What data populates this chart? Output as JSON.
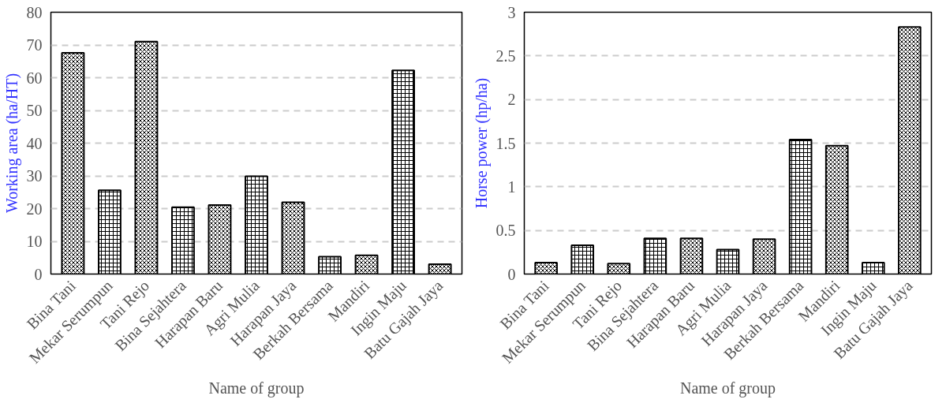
{
  "chart_data": [
    {
      "type": "bar",
      "xlabel": "Name of group",
      "ylabel": "Working area (ha/HT)",
      "categories": [
        "Bina Tani",
        "Mekar Serumpun",
        "Tani Rejo",
        "Bina Sejahtera",
        "Harapan Baru",
        "Agri Mulia",
        "Harapan Jaya",
        "Berkah Bersama",
        "Mandiri",
        "Ingin Maju",
        "Batu Gajah Jaya"
      ],
      "series": [
        {
          "color": "#000000",
          "values": [
            67.6,
            25.6,
            71,
            20.4,
            21.1,
            29.9,
            21.9,
            5.3,
            5.7,
            62.2,
            3.0
          ]
        }
      ],
      "ylim": [
        0,
        80
      ],
      "yticks": [
        0,
        10,
        20,
        30,
        40,
        50,
        60,
        70,
        80
      ],
      "grid": "y"
    },
    {
      "type": "bar",
      "xlabel": "Name of group",
      "ylabel": "Horse power (hp/ha)",
      "categories": [
        "Bina Tani",
        "Mekar Serumpun",
        "Tani Rejo",
        "Bina Sejahtera",
        "Harapan Baru",
        "Agri Mulia",
        "Harapan Jaya",
        "Berkah Bersama",
        "Mandiri",
        "Ingin Maju",
        "Batu Gajah Jaya"
      ],
      "series": [
        {
          "color": "#000000",
          "values": [
            0.13,
            0.33,
            0.12,
            0.41,
            0.41,
            0.28,
            0.4,
            1.54,
            1.47,
            0.13,
            2.83
          ]
        }
      ],
      "ylim": [
        0,
        3
      ],
      "yticks": [
        0,
        0.5,
        1,
        1.5,
        2,
        2.5,
        3
      ],
      "grid": "y"
    }
  ]
}
